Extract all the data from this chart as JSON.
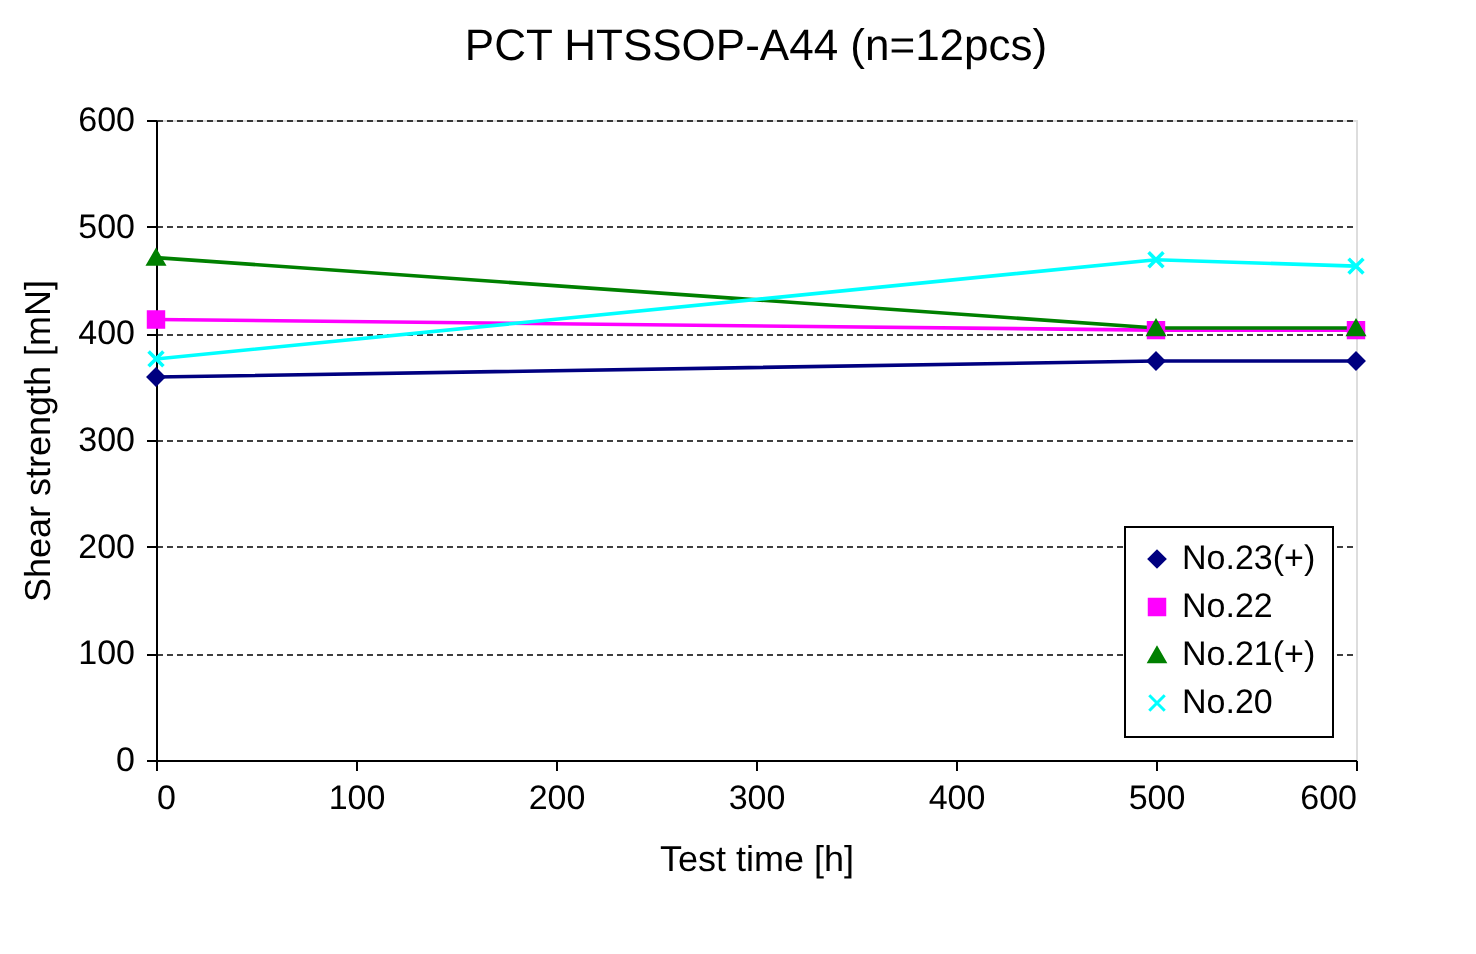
{
  "chart_data": {
    "type": "line",
    "title": "PCT HTSSOP-A44 (n=12pcs)",
    "xlabel": "Test time [h]",
    "ylabel": "Shear strength [mN]",
    "x": [
      0,
      500,
      600
    ],
    "series": [
      {
        "name": "No.23(+)",
        "color": "#000080",
        "marker": "diamond",
        "values": [
          359,
          374,
          374
        ]
      },
      {
        "name": "No.22",
        "color": "#ff00ff",
        "marker": "square",
        "values": [
          413,
          403,
          403
        ]
      },
      {
        "name": "No.21(+)",
        "color": "#008000",
        "marker": "triangle",
        "values": [
          471,
          405,
          405
        ]
      },
      {
        "name": "No.20",
        "color": "#00ffff",
        "marker": "cross",
        "values": [
          376,
          469,
          463
        ]
      }
    ],
    "xlim": [
      0,
      600
    ],
    "xticks": [
      0,
      100,
      200,
      300,
      400,
      500,
      600
    ],
    "ylim": [
      0,
      600
    ],
    "yticks": [
      0,
      100,
      200,
      300,
      400,
      500,
      600
    ],
    "grid": "y",
    "legend": "bottom right",
    "line_style": "solid"
  }
}
